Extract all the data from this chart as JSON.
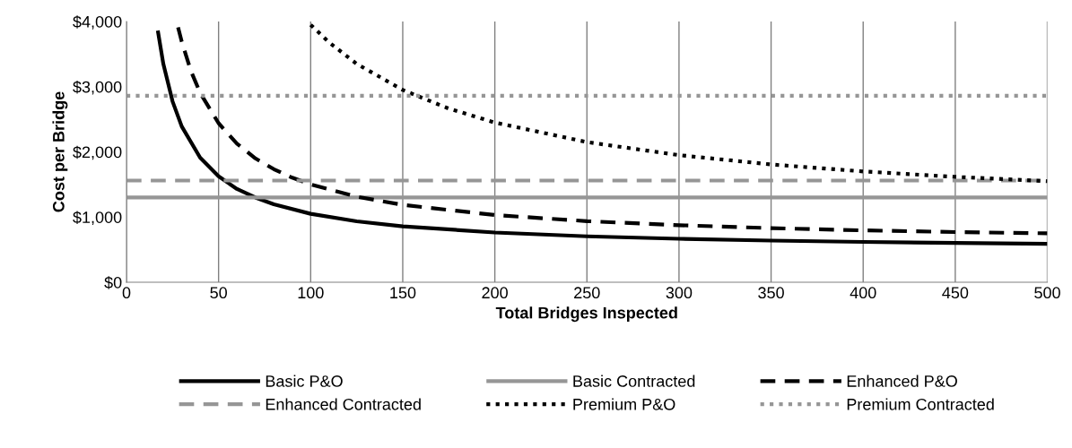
{
  "chart_data": {
    "type": "line",
    "xlabel": "Total Bridges Inspected",
    "ylabel": "Cost per Bridge",
    "xlim": [
      0,
      500
    ],
    "xticks": [
      0,
      50,
      100,
      150,
      200,
      250,
      300,
      350,
      400,
      450,
      500
    ],
    "ylim": [
      0,
      4000
    ],
    "yticks": [
      {
        "value": 0,
        "label": "$0"
      },
      {
        "value": 1000,
        "label": "$1,000"
      },
      {
        "value": 2000,
        "label": "$2,000"
      },
      {
        "value": 3000,
        "label": "$3,000"
      },
      {
        "value": 4000,
        "label": "$4,000"
      }
    ],
    "grid": "x",
    "legend": "bottom",
    "marker": "none",
    "series": [
      {
        "name": "Basic P&O",
        "color": "#000000",
        "line_style": "solid",
        "x": [
          17,
          20,
          25,
          30,
          40,
          50,
          60,
          70,
          80,
          100,
          125,
          150,
          200,
          250,
          300,
          350,
          400,
          450,
          500
        ],
        "values": [
          3860,
          3350,
          2775,
          2390,
          1910,
          1625,
          1430,
          1300,
          1195,
          1050,
          935,
          858,
          763,
          705,
          667,
          639,
          619,
          603,
          590
        ]
      },
      {
        "name": "Basic Contracted",
        "color": "#969696",
        "line_style": "solid",
        "x": [
          0,
          500
        ],
        "values": [
          1300,
          1300
        ]
      },
      {
        "name": "Enhanced P&O",
        "color": "#000000",
        "line_style": "dashed",
        "x": [
          28,
          30,
          35,
          40,
          50,
          60,
          70,
          80,
          90,
          100,
          125,
          150,
          200,
          250,
          300,
          350,
          400,
          450,
          500
        ],
        "values": [
          3910,
          3690,
          3240,
          2905,
          2440,
          2125,
          1900,
          1735,
          1604,
          1500,
          1312,
          1187,
          1031,
          937,
          875,
          830,
          796,
          770,
          750
        ]
      },
      {
        "name": "Enhanced Contracted",
        "color": "#969696",
        "line_style": "dashed",
        "x": [
          0,
          500
        ],
        "values": [
          1560,
          1560
        ]
      },
      {
        "name": "Premium P&O",
        "color": "#000000",
        "line_style": "dotted",
        "x": [
          100,
          110,
          125,
          150,
          175,
          200,
          250,
          300,
          350,
          400,
          450,
          500
        ],
        "values": [
          3950,
          3680,
          3350,
          2950,
          2664,
          2450,
          2150,
          1950,
          1807,
          1700,
          1617,
          1550
        ]
      },
      {
        "name": "Premium Contracted",
        "color": "#969696",
        "line_style": "dotted",
        "x": [
          0,
          500
        ],
        "values": [
          2860,
          2860
        ]
      }
    ]
  }
}
